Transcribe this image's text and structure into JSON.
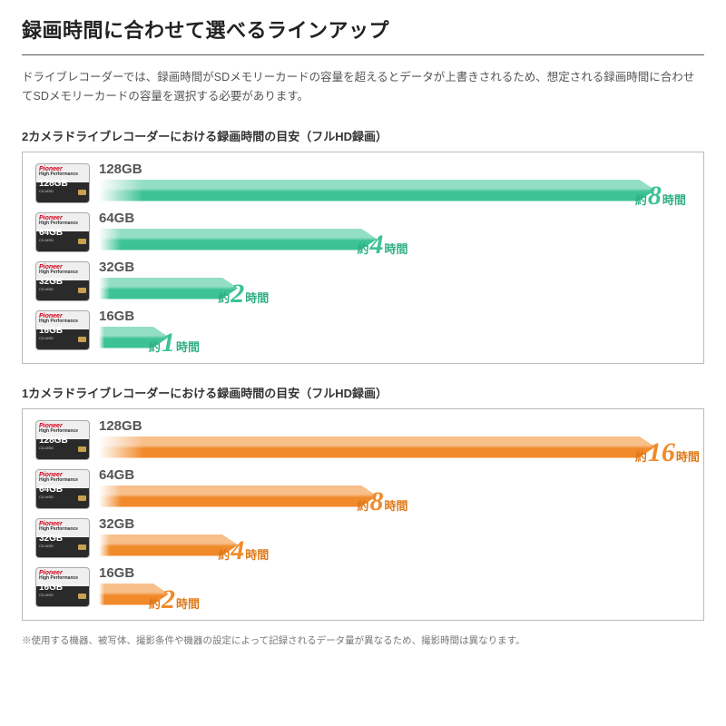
{
  "pageTitle": "録画時間に合わせて選べるラインアップ",
  "intro": "ドライブレコーダーでは、録画時間がSDメモリーカードの容量を超えるとデータが上書きされるため、想定される録画時間に合わせてSDメモリーカードの容量を選択する必要があります。",
  "card": {
    "brand": "Pioneer",
    "perf": "High Performance"
  },
  "yakuText": "約",
  "jikanText": "時間",
  "section1": {
    "title": "2カメラドライブレコーダーにおける録画時間の目安（フルHD録画）",
    "barColor": "#3cc295",
    "numColor": "#3cc295",
    "textColor": "#2fae83",
    "maxPct": 94,
    "rows": [
      {
        "capacity": "128GB",
        "hours": "8",
        "pct": 94
      },
      {
        "capacity": "64GB",
        "hours": "4",
        "pct": 47
      },
      {
        "capacity": "32GB",
        "hours": "2",
        "pct": 23.5
      },
      {
        "capacity": "16GB",
        "hours": "1",
        "pct": 11.8
      }
    ]
  },
  "section2": {
    "title": "1カメラドライブレコーダーにおける録画時間の目安（フルHD録画）",
    "barColor": "#f18a2a",
    "numColor": "#f18a2a",
    "textColor": "#e07818",
    "maxPct": 94,
    "rows": [
      {
        "capacity": "128GB",
        "hours": "16",
        "pct": 94
      },
      {
        "capacity": "64GB",
        "hours": "8",
        "pct": 47
      },
      {
        "capacity": "32GB",
        "hours": "4",
        "pct": 23.5
      },
      {
        "capacity": "16GB",
        "hours": "2",
        "pct": 11.8
      }
    ]
  },
  "footnote": "※使用する機器、被写体、撮影条件や機器の設定によって記録されるデータ量が異なるため、撮影時間は異なります。"
}
